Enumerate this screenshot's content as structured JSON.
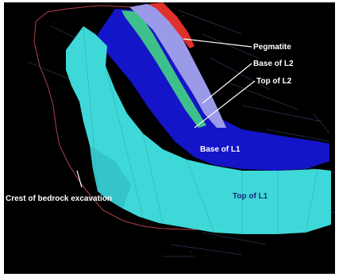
{
  "labels": {
    "pegmatite": "Pegmatite",
    "base_l2": "Base of L2",
    "top_l2": "Top of L2",
    "base_l1": "Base of L1",
    "top_l1": "Top of L1",
    "crest": "Crest of bedrock excavation"
  },
  "colors": {
    "background": "#000000",
    "pegmatite": "#e0302a",
    "base_l2": "#9a9ae8",
    "top_l2": "#3ec08a",
    "base_l1": "#1414c8",
    "top_l1": "#3fd8d8",
    "crest_line": "#b0404a",
    "leader": "#ffffff"
  }
}
